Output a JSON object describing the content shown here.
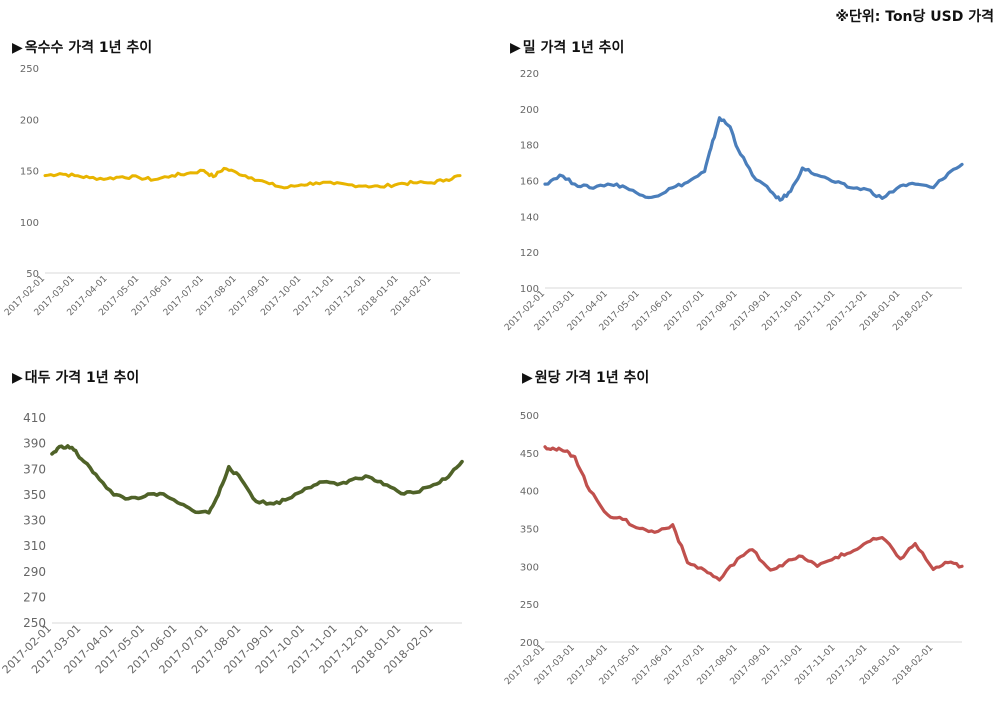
{
  "unit_note": "※단위: Ton당 USD 가격",
  "title_marker": "▶",
  "chart_data": [
    {
      "type": "line",
      "title": "옥수수 가격 1년 추이",
      "color": "#E8B400",
      "ylim": [
        50,
        250
      ],
      "yticks": [
        50,
        100,
        150,
        200,
        250
      ],
      "xlabels": [
        "2017-02-01",
        "2017-03-01",
        "2017-04-01",
        "2017-05-01",
        "2017-06-01",
        "2017-07-01",
        "2017-08-01",
        "2017-09-01",
        "2017-10-01",
        "2017-11-01",
        "2017-12-01",
        "2018-01-01",
        "2018-02-01"
      ],
      "x": [
        "2017-02-01",
        "2017-02-15",
        "2017-03-01",
        "2017-03-15",
        "2017-04-01",
        "2017-04-15",
        "2017-05-01",
        "2017-05-15",
        "2017-06-01",
        "2017-06-15",
        "2017-07-01",
        "2017-07-10",
        "2017-07-20",
        "2017-08-01",
        "2017-08-15",
        "2017-09-01",
        "2017-09-15",
        "2017-10-01",
        "2017-10-15",
        "2017-11-01",
        "2017-11-15",
        "2017-12-01",
        "2017-12-15",
        "2018-01-01",
        "2018-01-15",
        "2018-02-01",
        "2018-02-15",
        "2018-02-28"
      ],
      "values": [
        145,
        147,
        145,
        143,
        142,
        144,
        143,
        141,
        145,
        147,
        150,
        144,
        152,
        148,
        143,
        137,
        133,
        136,
        138,
        137,
        136,
        135,
        134,
        137,
        138,
        138,
        141,
        145
      ]
    },
    {
      "type": "line",
      "title": "밀 가격 1년 추이",
      "color": "#4A7EBB",
      "ylim": [
        100,
        220
      ],
      "yticks": [
        100,
        120,
        140,
        160,
        180,
        200,
        220
      ],
      "xlabels": [
        "2017-02-01",
        "2017-03-01",
        "2017-04-01",
        "2017-05-01",
        "2017-06-01",
        "2017-07-01",
        "2017-08-01",
        "2017-09-01",
        "2017-10-01",
        "2017-11-01",
        "2017-12-01",
        "2018-01-01",
        "2018-02-01"
      ],
      "x": [
        "2017-02-01",
        "2017-02-15",
        "2017-03-01",
        "2017-03-15",
        "2017-04-01",
        "2017-04-15",
        "2017-05-01",
        "2017-05-15",
        "2017-06-01",
        "2017-06-15",
        "2017-07-01",
        "2017-07-07",
        "2017-07-15",
        "2017-07-25",
        "2017-08-01",
        "2017-08-15",
        "2017-09-01",
        "2017-09-10",
        "2017-09-20",
        "2017-10-01",
        "2017-10-15",
        "2017-11-01",
        "2017-11-15",
        "2017-12-01",
        "2017-12-15",
        "2018-01-01",
        "2018-01-15",
        "2018-02-01",
        "2018-02-15",
        "2018-02-28"
      ],
      "values": [
        158,
        163,
        158,
        156,
        158,
        157,
        152,
        151,
        156,
        159,
        165,
        178,
        195,
        190,
        178,
        163,
        154,
        149,
        154,
        167,
        163,
        159,
        156,
        155,
        150,
        157,
        158,
        156,
        164,
        169
      ]
    },
    {
      "type": "line",
      "title": "대두 가격 1년 추이",
      "color": "#4F6228",
      "ylim": [
        250,
        410
      ],
      "yticks": [
        250,
        270,
        290,
        310,
        330,
        350,
        370,
        390,
        410
      ],
      "xlabels": [
        "2017-02-01",
        "2017-03-01",
        "2017-04-01",
        "2017-05-01",
        "2017-06-01",
        "2017-07-01",
        "2017-08-01",
        "2017-09-01",
        "2017-10-01",
        "2017-11-01",
        "2017-12-01",
        "2018-01-01",
        "2018-02-01"
      ],
      "x": [
        "2017-02-01",
        "2017-02-10",
        "2017-02-20",
        "2017-03-01",
        "2017-03-15",
        "2017-04-01",
        "2017-04-15",
        "2017-05-01",
        "2017-05-15",
        "2017-06-01",
        "2017-06-15",
        "2017-07-01",
        "2017-07-10",
        "2017-07-20",
        "2017-08-01",
        "2017-08-15",
        "2017-09-01",
        "2017-09-15",
        "2017-10-01",
        "2017-10-15",
        "2017-11-01",
        "2017-11-15",
        "2017-12-01",
        "2017-12-15",
        "2018-01-01",
        "2018-01-15",
        "2018-02-01",
        "2018-02-15",
        "2018-02-28"
      ],
      "values": [
        382,
        388,
        387,
        378,
        366,
        350,
        347,
        349,
        351,
        344,
        338,
        336,
        350,
        372,
        362,
        345,
        343,
        347,
        355,
        360,
        358,
        362,
        364,
        358,
        351,
        352,
        358,
        364,
        376
      ]
    },
    {
      "type": "line",
      "title": "원당 가격 1년 추이",
      "color": "#C0504D",
      "ylim": [
        200,
        500
      ],
      "yticks": [
        200,
        250,
        300,
        350,
        400,
        450,
        500
      ],
      "xlabels": [
        "2017-02-01",
        "2017-03-01",
        "2017-04-01",
        "2017-05-01",
        "2017-06-01",
        "2017-07-01",
        "2017-08-01",
        "2017-09-01",
        "2017-10-01",
        "2017-11-01",
        "2017-12-01",
        "2018-01-01",
        "2018-02-01"
      ],
      "x": [
        "2017-02-01",
        "2017-02-10",
        "2017-02-20",
        "2017-03-01",
        "2017-03-15",
        "2017-04-01",
        "2017-04-15",
        "2017-05-01",
        "2017-05-15",
        "2017-06-01",
        "2017-06-15",
        "2017-07-01",
        "2017-07-15",
        "2017-08-01",
        "2017-08-15",
        "2017-09-01",
        "2017-09-15",
        "2017-10-01",
        "2017-10-15",
        "2017-11-01",
        "2017-11-15",
        "2017-12-01",
        "2017-12-15",
        "2018-01-01",
        "2018-01-15",
        "2018-02-01",
        "2018-02-15",
        "2018-02-28"
      ],
      "values": [
        458,
        455,
        452,
        445,
        400,
        368,
        362,
        350,
        345,
        355,
        305,
        295,
        282,
        310,
        322,
        295,
        305,
        313,
        300,
        312,
        318,
        332,
        338,
        310,
        330,
        296,
        305,
        300
      ]
    }
  ]
}
